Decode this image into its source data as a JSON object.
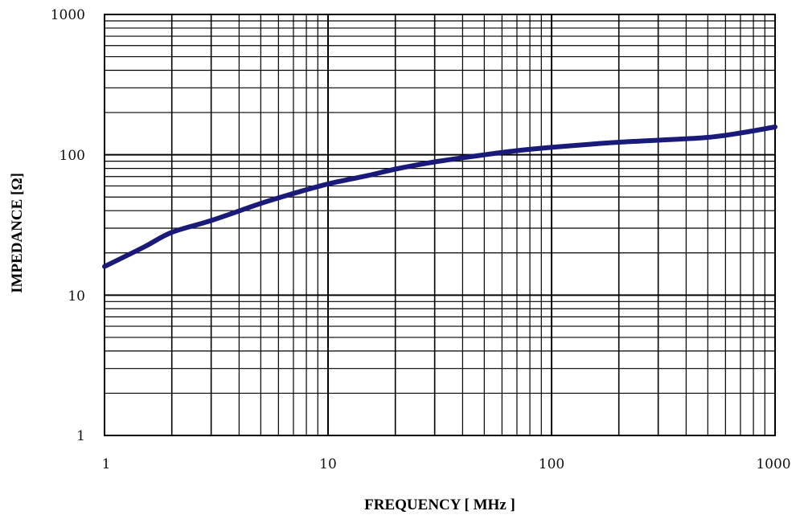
{
  "chart_data": {
    "type": "line",
    "title": "",
    "xlabel": "FREQUENCY [ MHz ]",
    "ylabel": "IMPEDANCE [Ω]",
    "xscale": "log",
    "yscale": "log",
    "xlim": [
      1,
      1000
    ],
    "ylim": [
      1,
      1000
    ],
    "xticks": [
      "1",
      "10",
      "100",
      "1000"
    ],
    "yticks": [
      "1",
      "10",
      "100",
      "1000"
    ],
    "grid": true,
    "legend": "none",
    "series": [
      {
        "color": "#1a1a7a",
        "x": [
          1,
          1.5,
          2,
          3,
          5,
          7,
          10,
          15,
          20,
          30,
          50,
          70,
          100,
          150,
          200,
          300,
          500,
          700,
          1000
        ],
        "y": [
          16,
          22,
          28,
          34,
          45,
          53,
          62,
          71,
          79,
          89,
          100,
          107,
          113,
          119,
          123,
          127,
          133,
          143,
          158
        ]
      }
    ]
  }
}
